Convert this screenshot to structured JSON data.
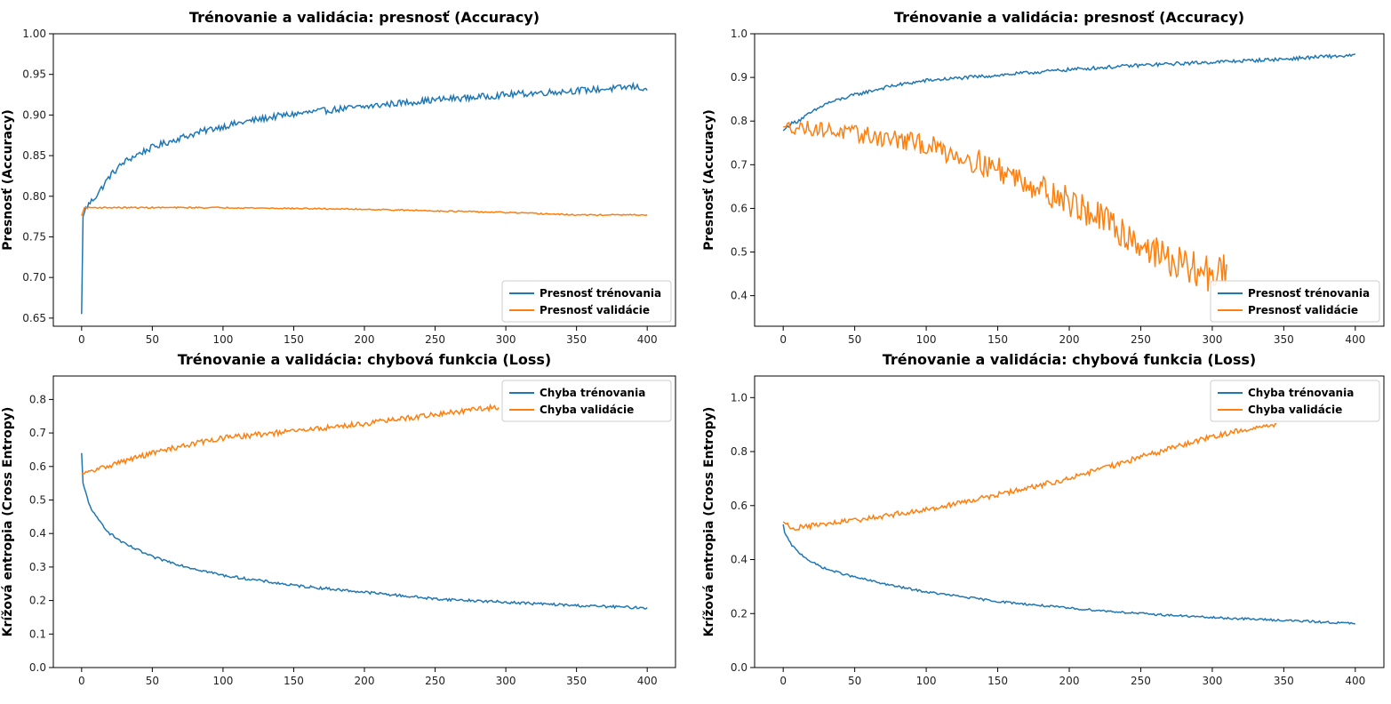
{
  "colors": {
    "train": "#1f77b4",
    "val": "#ff7f0e",
    "axis": "#000000"
  },
  "chart_data": [
    {
      "type": "line",
      "title": "Trénovanie a validácia: presnosť (Accuracy)",
      "xlabel": "",
      "ylabel": "Presnosť (Accuracy)",
      "xlim": [
        -20,
        420
      ],
      "ylim": [
        0.64,
        1.0
      ],
      "xticks": [
        0,
        50,
        100,
        150,
        200,
        250,
        300,
        350,
        400
      ],
      "yticks": [
        "0.65",
        "0.70",
        "0.75",
        "0.80",
        "0.85",
        "0.90",
        "0.95",
        "1.00"
      ],
      "legend_position": "lower-right",
      "series": [
        {
          "name": "Presnosť trénovania",
          "x": [
            0,
            1,
            3,
            5,
            10,
            15,
            20,
            30,
            40,
            50,
            60,
            70,
            80,
            90,
            100,
            120,
            140,
            160,
            180,
            200,
            220,
            240,
            260,
            280,
            300,
            320,
            340,
            360,
            380,
            390,
            400
          ],
          "values": [
            0.655,
            0.775,
            0.785,
            0.79,
            0.8,
            0.812,
            0.825,
            0.842,
            0.852,
            0.86,
            0.866,
            0.872,
            0.877,
            0.882,
            0.886,
            0.893,
            0.899,
            0.903,
            0.907,
            0.91,
            0.914,
            0.917,
            0.92,
            0.922,
            0.925,
            0.927,
            0.929,
            0.931,
            0.933,
            0.935,
            0.932
          ],
          "noise": 0.004
        },
        {
          "name": "Presnosť validácie",
          "x": [
            0,
            2,
            5,
            50,
            100,
            150,
            200,
            250,
            300,
            350,
            400
          ],
          "values": [
            0.776,
            0.786,
            0.786,
            0.786,
            0.786,
            0.785,
            0.784,
            0.782,
            0.78,
            0.777,
            0.777
          ],
          "noise": 0.0008
        }
      ]
    },
    {
      "type": "line",
      "title": "Trénovanie a validácia: presnosť (Accuracy)",
      "xlabel": "",
      "ylabel": "Presnosť (Accuracy)",
      "xlim": [
        -20,
        420
      ],
      "ylim": [
        0.33,
        1.0
      ],
      "xticks": [
        0,
        50,
        100,
        150,
        200,
        250,
        300,
        350,
        400
      ],
      "yticks": [
        "0.4",
        "0.5",
        "0.6",
        "0.7",
        "0.8",
        "0.9",
        "1.0"
      ],
      "legend_position": "lower-right",
      "series": [
        {
          "name": "Presnosť trénovania",
          "x": [
            0,
            5,
            10,
            20,
            30,
            50,
            75,
            100,
            150,
            200,
            250,
            300,
            350,
            380,
            400
          ],
          "values": [
            0.778,
            0.793,
            0.8,
            0.82,
            0.84,
            0.86,
            0.88,
            0.893,
            0.905,
            0.918,
            0.928,
            0.935,
            0.942,
            0.948,
            0.95
          ],
          "noise": 0.004
        },
        {
          "name": "Presnosť validácie",
          "x": [
            0,
            10,
            25,
            50,
            75,
            100,
            125,
            150,
            175,
            200,
            225,
            250,
            270,
            285,
            300,
            310
          ],
          "values": [
            0.787,
            0.786,
            0.782,
            0.77,
            0.76,
            0.745,
            0.72,
            0.69,
            0.655,
            0.615,
            0.57,
            0.52,
            0.48,
            0.46,
            0.45,
            0.455
          ],
          "noise": 0.015
        }
      ]
    },
    {
      "type": "line",
      "title": "Trénovanie a validácia: chybová funkcia (Loss)",
      "xlabel": "",
      "ylabel": "Krížová entropia (Cross Entropy)",
      "xlim": [
        -20,
        420
      ],
      "ylim": [
        0.0,
        0.87
      ],
      "xticks": [
        0,
        50,
        100,
        150,
        200,
        250,
        300,
        350,
        400
      ],
      "yticks": [
        "0.0",
        "0.1",
        "0.2",
        "0.3",
        "0.4",
        "0.5",
        "0.6",
        "0.7",
        "0.8"
      ],
      "legend_position": "upper-right",
      "series": [
        {
          "name": "Chyba trénovania",
          "x": [
            0,
            1,
            3,
            5,
            10,
            20,
            30,
            50,
            75,
            100,
            150,
            200,
            250,
            300,
            350,
            400
          ],
          "values": [
            0.64,
            0.55,
            0.52,
            0.49,
            0.45,
            0.4,
            0.37,
            0.33,
            0.3,
            0.275,
            0.245,
            0.225,
            0.205,
            0.195,
            0.185,
            0.178
          ],
          "noise": 0.004
        },
        {
          "name": "Chyba validácie",
          "x": [
            0,
            1,
            5,
            10,
            25,
            50,
            75,
            100,
            150,
            200,
            250,
            295
          ],
          "values": [
            0.58,
            0.578,
            0.582,
            0.59,
            0.61,
            0.64,
            0.665,
            0.685,
            0.705,
            0.728,
            0.755,
            0.778
          ],
          "noise": 0.008
        }
      ]
    },
    {
      "type": "line",
      "title": "Trénovanie a validácia: chybová funkcia (Loss)",
      "xlabel": "",
      "ylabel": "Krížová entropia (Cross Entropy)",
      "xlim": [
        -20,
        420
      ],
      "ylim": [
        0.0,
        1.08
      ],
      "xticks": [
        0,
        50,
        100,
        150,
        200,
        250,
        300,
        350,
        400
      ],
      "yticks": [
        "0.0",
        "0.2",
        "0.4",
        "0.6",
        "0.8",
        "1.0"
      ],
      "legend_position": "upper-right",
      "series": [
        {
          "name": "Chyba trénovania",
          "x": [
            0,
            1,
            3,
            5,
            10,
            20,
            30,
            50,
            75,
            100,
            150,
            200,
            250,
            300,
            350,
            400
          ],
          "values": [
            0.53,
            0.5,
            0.48,
            0.46,
            0.43,
            0.39,
            0.365,
            0.335,
            0.305,
            0.28,
            0.245,
            0.22,
            0.2,
            0.185,
            0.175,
            0.163
          ],
          "noise": 0.004
        },
        {
          "name": "Chyba validácie",
          "x": [
            0,
            5,
            10,
            50,
            100,
            150,
            200,
            250,
            300,
            330,
            345
          ],
          "values": [
            0.54,
            0.52,
            0.518,
            0.545,
            0.585,
            0.64,
            0.7,
            0.78,
            0.855,
            0.89,
            0.895
          ],
          "noise": 0.01
        }
      ]
    }
  ]
}
